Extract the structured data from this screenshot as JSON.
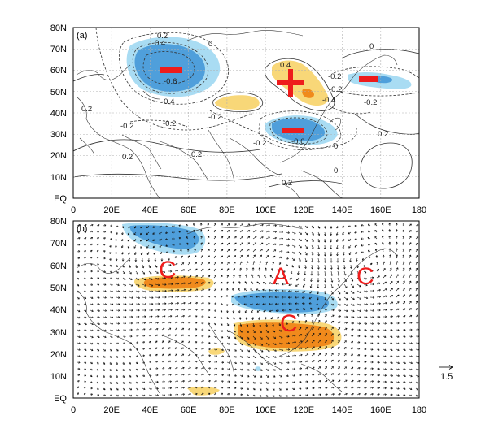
{
  "x_ticks": [
    "0",
    "20E",
    "40E",
    "60E",
    "80E",
    "100E",
    "120E",
    "140E",
    "160E",
    "180"
  ],
  "y_ticks": [
    "EQ",
    "10N",
    "20N",
    "30N",
    "40N",
    "50N",
    "60N",
    "70N",
    "80N"
  ],
  "panel_a": {
    "label": "(a)",
    "contour_labels": [
      "0.2",
      "0.4",
      "0",
      "-0.6",
      "-0.4",
      "0.4",
      "-0.2",
      "-0.2",
      "0",
      "-0.2",
      "-0.2",
      "-0.4",
      "0.2",
      "-0.2",
      "-0.6",
      "-0.2",
      "0.2",
      "0.2",
      "-0.2",
      "0.2",
      "0",
      "0",
      "0.2"
    ],
    "signs": {
      "minus": "−",
      "plus": "+"
    }
  },
  "panel_b": {
    "label": "(b)",
    "circulation_labels": [
      "C",
      "A",
      "C",
      "C"
    ],
    "reference_vector_value": "1.5"
  },
  "colors": {
    "negative_strong": "#4f9fdb",
    "negative_weak": "#a9dcf3",
    "positive_strong": "#f08a1c",
    "positive_weak": "#f8d778",
    "marker_red": "#ee1c1c",
    "coast": "#333333",
    "grid": "#b0b0b0"
  }
}
